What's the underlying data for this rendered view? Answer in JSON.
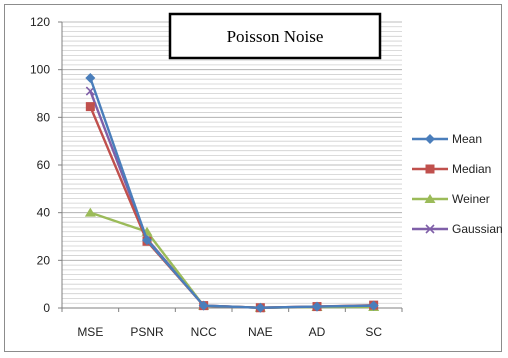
{
  "chart_data": {
    "type": "line",
    "title": "Poisson Noise",
    "categories": [
      "MSE",
      "PSNR",
      "NCC",
      "NAE",
      "AD",
      "SC"
    ],
    "ylim": [
      0,
      120
    ],
    "yticks": [
      0,
      20,
      40,
      60,
      80,
      100,
      120
    ],
    "grid": true,
    "legend_position": "right",
    "series": [
      {
        "name": "Mean",
        "values": [
          96.5,
          28.5,
          1.0,
          0.1,
          0.6,
          1.0
        ],
        "color": "#4a7ebb",
        "marker": "diamond"
      },
      {
        "name": "Median",
        "values": [
          84.5,
          28.0,
          1.0,
          0.1,
          0.6,
          1.2
        ],
        "color": "#c0504d",
        "marker": "square"
      },
      {
        "name": "Weiner",
        "values": [
          40.0,
          32.0,
          0.9,
          0.1,
          0.4,
          0.4
        ],
        "color": "#9bbb59",
        "marker": "triangle"
      },
      {
        "name": "Gaussian",
        "values": [
          91.0,
          29.0,
          1.0,
          0.1,
          0.6,
          1.0
        ],
        "color": "#7f5fa8",
        "marker": "x"
      }
    ]
  }
}
